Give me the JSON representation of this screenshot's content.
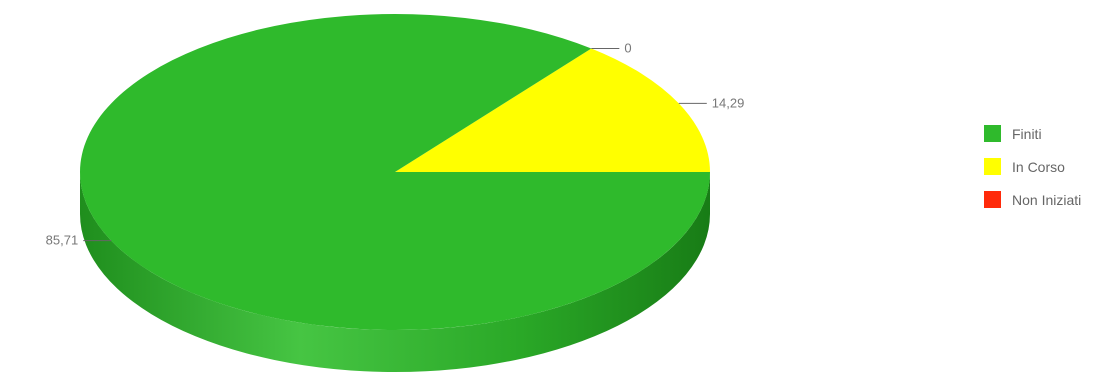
{
  "chart_data": {
    "type": "pie",
    "title": "",
    "categories": [
      "Finiti",
      "In Corso",
      "Non Iniziati"
    ],
    "values": [
      85.71,
      14.29,
      0
    ],
    "value_labels": [
      "85,71",
      "14,29",
      "0"
    ],
    "colors": [
      "#2fba2c",
      "#ffff00",
      "#ff2a0a"
    ],
    "legend": "right",
    "style": "3d"
  },
  "legend": {
    "items": [
      {
        "label": "Finiti",
        "color": "#2fba2c"
      },
      {
        "label": "In Corso",
        "color": "#ffff00"
      },
      {
        "label": "Non Iniziati",
        "color": "#ff2a0a"
      }
    ]
  }
}
